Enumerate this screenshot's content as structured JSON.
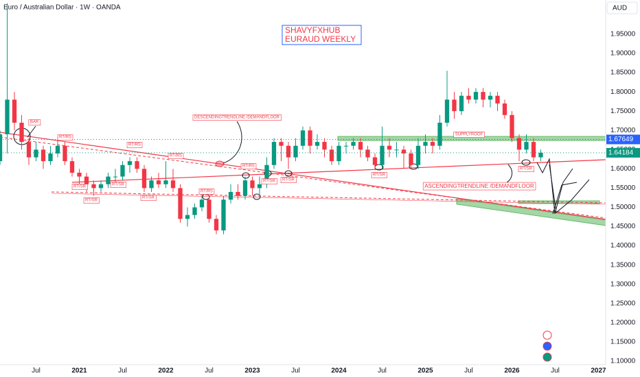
{
  "header": "Euro / Australian Dollar · 1W · OANDA",
  "currency": "AUD",
  "chart_data": {
    "type": "candlestick",
    "title": "SHAVYFXHUB",
    "subtitle": "EURAUD WEEKLY",
    "up_color": "#089981",
    "down_color": "#f23645",
    "grid": false,
    "x": [
      "2020-02",
      "2020-03",
      "2020-04",
      "2020-05",
      "2020-06",
      "2020-07",
      "2020-08",
      "2020-09",
      "2020-10",
      "2020-11",
      "2020-12",
      "2021-01",
      "2021-02",
      "2021-03",
      "2021-04",
      "2021-05",
      "2021-06",
      "2021-07",
      "2021-08",
      "2021-09",
      "2021-10",
      "2021-11",
      "2021-12",
      "2022-01",
      "2022-02",
      "2022-03",
      "2022-04",
      "2022-05",
      "2022-06",
      "2022-07",
      "2022-08",
      "2022-09",
      "2022-10",
      "2022-11",
      "2022-12",
      "2023-01",
      "2023-02",
      "2023-03",
      "2023-04",
      "2023-05",
      "2023-06",
      "2023-07",
      "2023-08",
      "2023-09",
      "2023-10",
      "2023-11",
      "2023-12",
      "2024-01",
      "2024-02",
      "2024-03",
      "2024-04",
      "2024-05",
      "2024-06",
      "2024-07",
      "2024-08",
      "2024-09",
      "2024-10",
      "2024-11",
      "2024-12",
      "2025-01",
      "2025-02",
      "2025-03",
      "2025-04",
      "2025-05",
      "2025-06",
      "2025-07",
      "2025-08",
      "2025-09",
      "2025-10",
      "2025-11",
      "2025-12",
      "2026-01",
      "2026-02",
      "2026-03",
      "2026-04",
      "2026-05"
    ],
    "ohlc": [
      [
        1.62,
        1.7,
        1.61,
        1.69
      ],
      [
        1.69,
        2.03,
        1.64,
        1.78
      ],
      [
        1.78,
        1.8,
        1.7,
        1.72
      ],
      [
        1.72,
        1.74,
        1.65,
        1.67
      ],
      [
        1.67,
        1.68,
        1.61,
        1.63
      ],
      [
        1.63,
        1.67,
        1.62,
        1.65
      ],
      [
        1.65,
        1.66,
        1.6,
        1.62
      ],
      [
        1.62,
        1.66,
        1.61,
        1.64
      ],
      [
        1.64,
        1.68,
        1.63,
        1.66
      ],
      [
        1.66,
        1.67,
        1.61,
        1.62
      ],
      [
        1.62,
        1.63,
        1.58,
        1.59
      ],
      [
        1.59,
        1.6,
        1.56,
        1.58
      ],
      [
        1.58,
        1.59,
        1.54,
        1.56
      ],
      [
        1.56,
        1.57,
        1.53,
        1.55
      ],
      [
        1.55,
        1.57,
        1.54,
        1.56
      ],
      [
        1.56,
        1.59,
        1.55,
        1.58
      ],
      [
        1.58,
        1.6,
        1.56,
        1.58
      ],
      [
        1.58,
        1.62,
        1.57,
        1.61
      ],
      [
        1.61,
        1.63,
        1.59,
        1.62
      ],
      [
        1.62,
        1.63,
        1.59,
        1.6
      ],
      [
        1.6,
        1.61,
        1.54,
        1.55
      ],
      [
        1.55,
        1.58,
        1.54,
        1.57
      ],
      [
        1.57,
        1.59,
        1.55,
        1.56
      ],
      [
        1.56,
        1.62,
        1.55,
        1.57
      ],
      [
        1.57,
        1.6,
        1.54,
        1.55
      ],
      [
        1.55,
        1.56,
        1.46,
        1.47
      ],
      [
        1.47,
        1.5,
        1.45,
        1.48
      ],
      [
        1.48,
        1.51,
        1.47,
        1.5
      ],
      [
        1.5,
        1.53,
        1.49,
        1.52
      ],
      [
        1.52,
        1.53,
        1.46,
        1.47
      ],
      [
        1.47,
        1.48,
        1.43,
        1.44
      ],
      [
        1.44,
        1.53,
        1.43,
        1.52
      ],
      [
        1.52,
        1.56,
        1.51,
        1.54
      ],
      [
        1.54,
        1.56,
        1.52,
        1.53
      ],
      [
        1.53,
        1.58,
        1.52,
        1.57
      ],
      [
        1.57,
        1.58,
        1.53,
        1.55
      ],
      [
        1.55,
        1.58,
        1.53,
        1.56
      ],
      [
        1.56,
        1.63,
        1.55,
        1.61
      ],
      [
        1.61,
        1.68,
        1.6,
        1.67
      ],
      [
        1.67,
        1.68,
        1.62,
        1.66
      ],
      [
        1.66,
        1.67,
        1.6,
        1.63
      ],
      [
        1.63,
        1.68,
        1.62,
        1.66
      ],
      [
        1.66,
        1.71,
        1.65,
        1.7
      ],
      [
        1.7,
        1.71,
        1.64,
        1.66
      ],
      [
        1.66,
        1.69,
        1.65,
        1.67
      ],
      [
        1.67,
        1.68,
        1.63,
        1.65
      ],
      [
        1.65,
        1.66,
        1.61,
        1.62
      ],
      [
        1.62,
        1.67,
        1.61,
        1.66
      ],
      [
        1.66,
        1.67,
        1.64,
        1.66
      ],
      [
        1.66,
        1.68,
        1.65,
        1.67
      ],
      [
        1.67,
        1.68,
        1.63,
        1.65
      ],
      [
        1.65,
        1.66,
        1.62,
        1.63
      ],
      [
        1.63,
        1.64,
        1.6,
        1.61
      ],
      [
        1.61,
        1.71,
        1.6,
        1.66
      ],
      [
        1.66,
        1.68,
        1.63,
        1.65
      ],
      [
        1.65,
        1.67,
        1.63,
        1.65
      ],
      [
        1.65,
        1.66,
        1.6,
        1.64
      ],
      [
        1.64,
        1.65,
        1.6,
        1.61
      ],
      [
        1.61,
        1.68,
        1.6,
        1.66
      ],
      [
        1.66,
        1.69,
        1.64,
        1.67
      ],
      [
        1.67,
        1.68,
        1.64,
        1.66
      ],
      [
        1.66,
        1.74,
        1.65,
        1.72
      ],
      [
        1.72,
        1.855,
        1.71,
        1.78
      ],
      [
        1.78,
        1.8,
        1.73,
        1.75
      ],
      [
        1.75,
        1.8,
        1.74,
        1.79
      ],
      [
        1.79,
        1.81,
        1.77,
        1.78
      ],
      [
        1.78,
        1.81,
        1.77,
        1.8
      ],
      [
        1.8,
        1.81,
        1.76,
        1.78
      ],
      [
        1.78,
        1.8,
        1.76,
        1.79
      ],
      [
        1.79,
        1.8,
        1.75,
        1.77
      ],
      [
        1.77,
        1.78,
        1.73,
        1.74
      ],
      [
        1.74,
        1.75,
        1.67,
        1.68
      ],
      [
        1.68,
        1.69,
        1.62,
        1.65
      ],
      [
        1.65,
        1.69,
        1.64,
        1.67
      ],
      [
        1.67,
        1.68,
        1.62,
        1.63
      ],
      [
        1.63,
        1.65,
        1.62,
        1.64184
      ]
    ],
    "level": 1.67649,
    "level_color": "#2962ff",
    "xlim": [
      "2020-02",
      "2027-02"
    ],
    "xticks": [
      {
        "value": "2020-07",
        "label": "Jul"
      },
      {
        "value": "2021-01",
        "label": "2021"
      },
      {
        "value": "2021-07",
        "label": "Jul"
      },
      {
        "value": "2022-01",
        "label": "2022"
      },
      {
        "value": "2022-07",
        "label": "Jul"
      },
      {
        "value": "2023-01",
        "label": "2023"
      },
      {
        "value": "2023-07",
        "label": "Jul"
      },
      {
        "value": "2024-01",
        "label": "2024"
      },
      {
        "value": "2024-07",
        "label": "Jul"
      },
      {
        "value": "2025-01",
        "label": "2025"
      },
      {
        "value": "2025-07",
        "label": "Jul"
      },
      {
        "value": "2026-01",
        "label": "2026"
      },
      {
        "value": "2026-07",
        "label": "Jul"
      },
      {
        "value": "2027-01",
        "label": "2027"
      }
    ],
    "ylim": [
      1.091,
      2.039
    ],
    "yticks": [
      {
        "value": 1.1,
        "label": "1.10000"
      },
      {
        "value": 1.15,
        "label": "1.15000"
      },
      {
        "value": 1.2,
        "label": "1.20000"
      },
      {
        "value": 1.25,
        "label": "1.25000"
      },
      {
        "value": 1.3,
        "label": "1.30000"
      },
      {
        "value": 1.35,
        "label": "1.35000"
      },
      {
        "value": 1.4,
        "label": "1.40000"
      },
      {
        "value": 1.45,
        "label": "1.45000"
      },
      {
        "value": 1.5,
        "label": "1.50000"
      },
      {
        "value": 1.55,
        "label": "1.55000"
      },
      {
        "value": 1.6,
        "label": "1.60000"
      },
      {
        "value": 1.65,
        "label": "1.65000"
      },
      {
        "value": 1.7,
        "label": "1.70000"
      },
      {
        "value": 1.75,
        "label": "1.75000"
      },
      {
        "value": 1.8,
        "label": "1.80000"
      },
      {
        "value": 1.85,
        "label": "1.85000"
      },
      {
        "value": 1.9,
        "label": "1.90000"
      },
      {
        "value": 1.95,
        "label": "1.95000"
      }
    ],
    "annotations": [
      "BAR",
      "RT/RS",
      "RT/RS",
      "RT/RS",
      "RT/SR",
      "RT/SR",
      "RT/SR",
      "RT/SR",
      "RT/RS",
      "RT/RS",
      "RT/SR",
      "RT/SR",
      "RT/SR",
      "RT/SR",
      "DESCENDINGTRENDLINE /DEMANDFLOOR",
      "SUPPLYROOF",
      "ASCENDINGTRENDLINE /DEMANDFLOOR"
    ]
  }
}
